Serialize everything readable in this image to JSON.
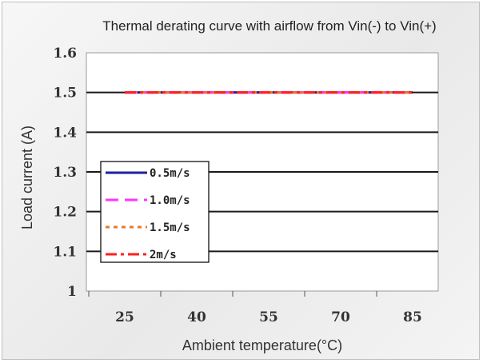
{
  "chart_data": {
    "type": "line",
    "title": "Thermal derating curve with airflow from Vin(-) to Vin(+)",
    "xlabel": "Ambient temperature(°C)",
    "ylabel": "Load current (A)",
    "categories": [
      "25",
      "40",
      "55",
      "70",
      "85"
    ],
    "yticks": [
      "1.6",
      "1.5",
      "1.4",
      "1.3",
      "1.2",
      "1.1",
      "1"
    ],
    "ylim": [
      1,
      1.6
    ],
    "grid": true,
    "legend_position": "left-bottom",
    "series": [
      {
        "name": "0.5m/s",
        "values": [
          1.5,
          1.5,
          1.5,
          1.5,
          1.5
        ],
        "color": "#1f1f9a",
        "dash": "solid"
      },
      {
        "name": "1.0m/s",
        "values": [
          1.5,
          1.5,
          1.5,
          1.5,
          1.5
        ],
        "color": "#ff33ff",
        "dash": "long"
      },
      {
        "name": "1.5m/s",
        "values": [
          1.5,
          1.5,
          1.5,
          1.5,
          1.5
        ],
        "color": "#e07a2e",
        "dash": "dot"
      },
      {
        "name": "2m/s",
        "values": [
          1.5,
          1.5,
          1.5,
          1.5,
          1.5
        ],
        "color": "#ff2020",
        "dash": "dashdot"
      }
    ]
  }
}
